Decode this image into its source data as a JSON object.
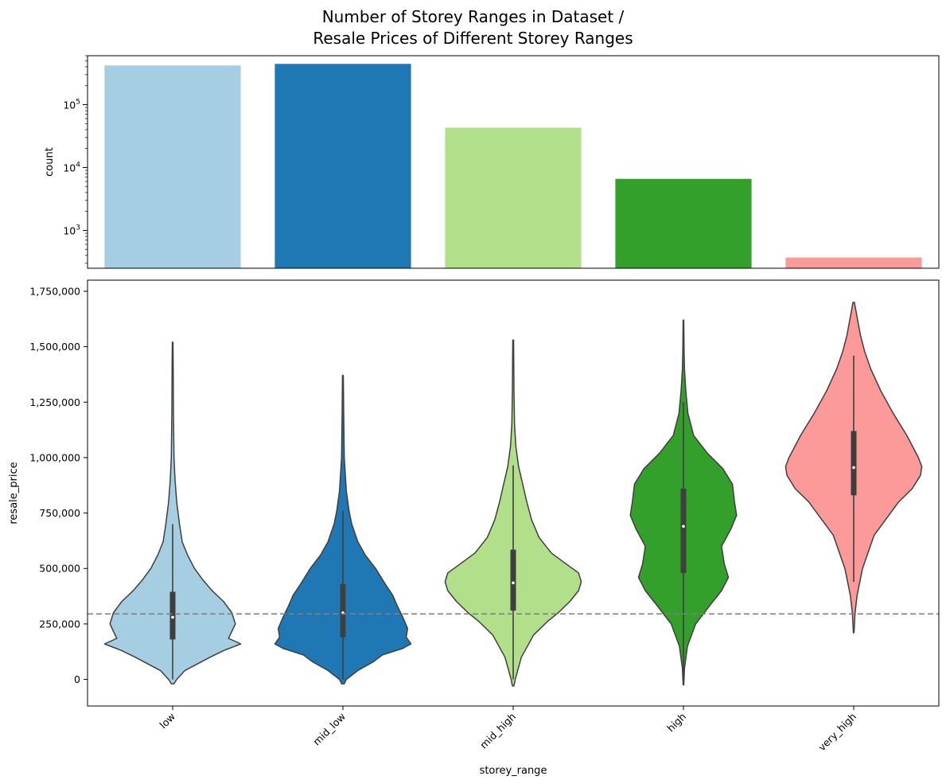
{
  "figure": {
    "title_line1": "Number of Storey Ranges in Dataset /",
    "title_line2": "Resale Prices of Different Storey Ranges"
  },
  "chart_data": [
    {
      "type": "bar",
      "categories": [
        "low",
        "mid_low",
        "mid_high",
        "high",
        "very_high"
      ],
      "values": [
        420000,
        445000,
        43000,
        6600,
        370
      ],
      "ylabel": "count",
      "xlabel": "",
      "yscale": "log",
      "ylim": [
        250,
        600000
      ],
      "yticks": [
        {
          "value": 1000,
          "mant": "10",
          "exp": "3"
        },
        {
          "value": 10000,
          "mant": "10",
          "exp": "4"
        },
        {
          "value": 100000,
          "mant": "10",
          "exp": "5"
        }
      ],
      "colors": [
        "#a6cee3",
        "#1f78b4",
        "#b2df8a",
        "#33a02c",
        "#fb9a99"
      ],
      "grid": false
    },
    {
      "type": "violin",
      "categories": [
        "low",
        "mid_low",
        "mid_high",
        "high",
        "very_high"
      ],
      "xlabel": "storey_range",
      "ylabel": "resale_price",
      "ylim": [
        -120000,
        1800000
      ],
      "yticks": [
        0,
        250000,
        500000,
        750000,
        1000000,
        1250000,
        1500000,
        1750000
      ],
      "ytick_labels": [
        "0",
        "250,000",
        "500,000",
        "750,000",
        "1,000,000",
        "1,250,000",
        "1,500,000",
        "1,750,000"
      ],
      "reference_line": {
        "value": 295000,
        "style": "dashed",
        "color": "#808080"
      },
      "colors": [
        "#a6cee3",
        "#1f78b4",
        "#b2df8a",
        "#33a02c",
        "#fb9a99"
      ],
      "violins": [
        {
          "name": "low",
          "q1": 180000,
          "median": 280000,
          "q3": 395000,
          "whisker_low": 0,
          "whisker_high": 700000,
          "profile": [
            [
              -20000,
              0.02
            ],
            [
              0,
              0.06
            ],
            [
              40000,
              0.18
            ],
            [
              100000,
              0.55
            ],
            [
              130000,
              0.75
            ],
            [
              160000,
              1.0
            ],
            [
              185000,
              0.82
            ],
            [
              210000,
              0.86
            ],
            [
              250000,
              0.92
            ],
            [
              300000,
              0.87
            ],
            [
              350000,
              0.75
            ],
            [
              400000,
              0.58
            ],
            [
              450000,
              0.44
            ],
            [
              500000,
              0.32
            ],
            [
              560000,
              0.22
            ],
            [
              620000,
              0.14
            ],
            [
              700000,
              0.1
            ],
            [
              800000,
              0.06
            ],
            [
              900000,
              0.035
            ],
            [
              1000000,
              0.02
            ],
            [
              1200000,
              0.012
            ],
            [
              1400000,
              0.008
            ],
            [
              1520000,
              0.005
            ]
          ]
        },
        {
          "name": "mid_low",
          "q1": 190000,
          "median": 300000,
          "q3": 430000,
          "whisker_low": 0,
          "whisker_high": 760000,
          "profile": [
            [
              -20000,
              0.02
            ],
            [
              0,
              0.05
            ],
            [
              40000,
              0.22
            ],
            [
              80000,
              0.45
            ],
            [
              110000,
              0.58
            ],
            [
              140000,
              0.88
            ],
            [
              160000,
              1.0
            ],
            [
              190000,
              0.93
            ],
            [
              230000,
              0.95
            ],
            [
              280000,
              0.88
            ],
            [
              330000,
              0.8
            ],
            [
              380000,
              0.73
            ],
            [
              430000,
              0.62
            ],
            [
              500000,
              0.48
            ],
            [
              560000,
              0.33
            ],
            [
              620000,
              0.22
            ],
            [
              700000,
              0.13
            ],
            [
              760000,
              0.09
            ],
            [
              850000,
              0.05
            ],
            [
              1000000,
              0.02
            ],
            [
              1200000,
              0.012
            ],
            [
              1370000,
              0.006
            ]
          ]
        },
        {
          "name": "mid_high",
          "q1": 310000,
          "median": 435000,
          "q3": 585000,
          "whisker_low": 0,
          "whisker_high": 965000,
          "profile": [
            [
              -30000,
              0.01
            ],
            [
              0,
              0.03
            ],
            [
              100000,
              0.12
            ],
            [
              200000,
              0.3
            ],
            [
              260000,
              0.5
            ],
            [
              300000,
              0.66
            ],
            [
              350000,
              0.83
            ],
            [
              400000,
              0.96
            ],
            [
              440000,
              1.0
            ],
            [
              480000,
              0.96
            ],
            [
              520000,
              0.78
            ],
            [
              570000,
              0.56
            ],
            [
              640000,
              0.38
            ],
            [
              720000,
              0.27
            ],
            [
              800000,
              0.2
            ],
            [
              880000,
              0.14
            ],
            [
              960000,
              0.08
            ],
            [
              1050000,
              0.04
            ],
            [
              1150000,
              0.02
            ],
            [
              1300000,
              0.012
            ],
            [
              1530000,
              0.006
            ]
          ]
        },
        {
          "name": "high",
          "q1": 480000,
          "median": 690000,
          "q3": 860000,
          "whisker_low": 0,
          "whisker_high": 1250000,
          "profile": [
            [
              -25000,
              0.005
            ],
            [
              50000,
              0.015
            ],
            [
              150000,
              0.06
            ],
            [
              250000,
              0.18
            ],
            [
              330000,
              0.38
            ],
            [
              400000,
              0.56
            ],
            [
              460000,
              0.66
            ],
            [
              520000,
              0.6
            ],
            [
              600000,
              0.56
            ],
            [
              680000,
              0.7
            ],
            [
              740000,
              0.78
            ],
            [
              800000,
              0.75
            ],
            [
              880000,
              0.72
            ],
            [
              950000,
              0.58
            ],
            [
              1020000,
              0.35
            ],
            [
              1100000,
              0.15
            ],
            [
              1200000,
              0.065
            ],
            [
              1300000,
              0.035
            ],
            [
              1400000,
              0.015
            ],
            [
              1500000,
              0.008
            ],
            [
              1620000,
              0.005
            ]
          ]
        },
        {
          "name": "very_high",
          "q1": 830000,
          "median": 955000,
          "q3": 1120000,
          "whisker_low": 440000,
          "whisker_high": 1460000,
          "profile": [
            [
              210000,
              0.005
            ],
            [
              300000,
              0.02
            ],
            [
              380000,
              0.05
            ],
            [
              500000,
              0.13
            ],
            [
              650000,
              0.3
            ],
            [
              800000,
              0.66
            ],
            [
              860000,
              0.86
            ],
            [
              920000,
              0.98
            ],
            [
              960000,
              1.0
            ],
            [
              1000000,
              0.95
            ],
            [
              1100000,
              0.78
            ],
            [
              1200000,
              0.58
            ],
            [
              1300000,
              0.4
            ],
            [
              1400000,
              0.25
            ],
            [
              1480000,
              0.16
            ],
            [
              1550000,
              0.1
            ],
            [
              1600000,
              0.07
            ],
            [
              1650000,
              0.04
            ],
            [
              1700000,
              0.01
            ]
          ]
        }
      ]
    }
  ]
}
